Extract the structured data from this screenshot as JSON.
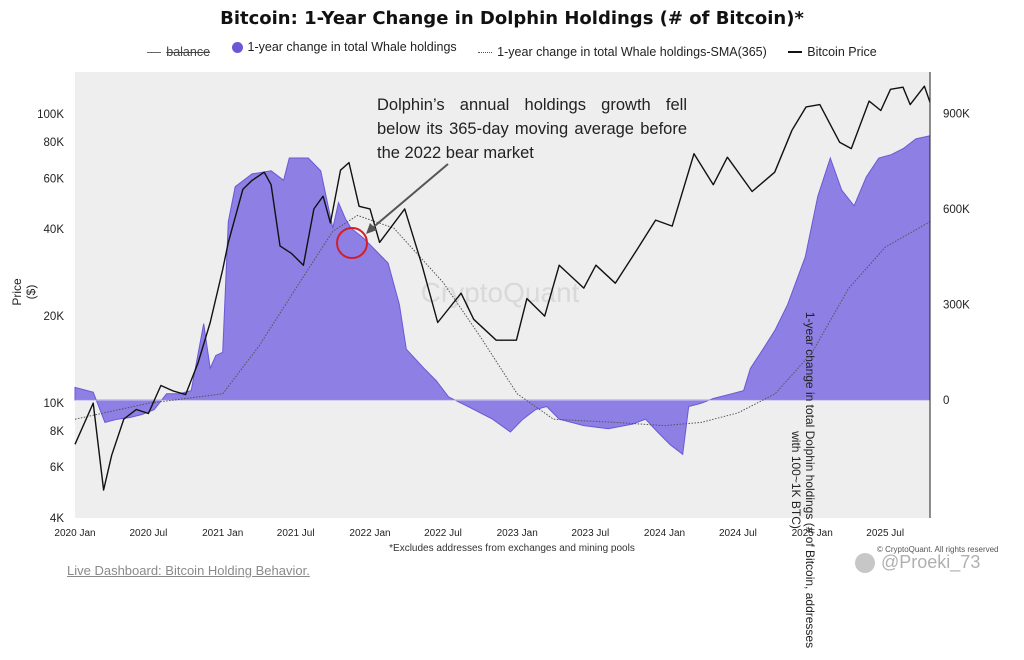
{
  "title": "Bitcoin: 1-Year Change in Dolphin Holdings (# of Bitcoin)*",
  "legend": {
    "balance": "balance",
    "whale": "1-year change in total Whale holdings",
    "sma": "1-year change in total Whale holdings-SMA(365)",
    "price": "Bitcoin Price"
  },
  "annotation": "Dolphin’s annual holdings growth fell below its 365-day moving average before the 2022 bear market",
  "watermark_center": "CryptoQuant",
  "footnote": "*Excludes addresses from exchanges and mining pools",
  "copyright": "© CryptoQuant. All rights reserved",
  "dashboard_link": "Live Dashboard: Bitcoin Holding Behavior.",
  "social_watermark": "@Proeki_73",
  "colors": {
    "fill": "#7b6be0",
    "fill_line": "#6b58d6",
    "price": "#111111",
    "sma": "#555555",
    "plot_bg": "#eeeeee",
    "highlight": "#d21f2a"
  },
  "chart_data": {
    "type": "area",
    "y_left_label": "Price ($)",
    "y_right_label": "1-year change in total Dolphin holdings (# of Bitcoin, addresses with 100~1K BTC)",
    "y_left_scale": "log",
    "y_left_range": [
      4000,
      140000
    ],
    "y_left_ticks": [
      {
        "v": 4000,
        "label": "4K"
      },
      {
        "v": 6000,
        "label": "6K"
      },
      {
        "v": 8000,
        "label": "8K"
      },
      {
        "v": 10000,
        "label": "10K"
      },
      {
        "v": 20000,
        "label": "20K"
      },
      {
        "v": 40000,
        "label": "40K"
      },
      {
        "v": 60000,
        "label": "60K"
      },
      {
        "v": 80000,
        "label": "80K"
      },
      {
        "v": 100000,
        "label": "100K"
      }
    ],
    "y_right_range": [
      -370000,
      1030000
    ],
    "y_right_ticks": [
      {
        "v": 0,
        "label": "0"
      },
      {
        "v": 300000,
        "label": "300K"
      },
      {
        "v": 600000,
        "label": "600K"
      },
      {
        "v": 900000,
        "label": "900K"
      }
    ],
    "x_range": [
      "2020-01-01",
      "2025-10-20"
    ],
    "x_ticks": [
      {
        "v": "2020-01-01",
        "label": "2020 Jan"
      },
      {
        "v": "2020-07-01",
        "label": "2020 Jul"
      },
      {
        "v": "2021-01-01",
        "label": "2021 Jan"
      },
      {
        "v": "2021-07-01",
        "label": "2021 Jul"
      },
      {
        "v": "2022-01-01",
        "label": "2022 Jan"
      },
      {
        "v": "2022-07-01",
        "label": "2022 Jul"
      },
      {
        "v": "2023-01-01",
        "label": "2023 Jan"
      },
      {
        "v": "2023-07-01",
        "label": "2023 Jul"
      },
      {
        "v": "2024-01-01",
        "label": "2024 Jan"
      },
      {
        "v": "2024-07-01",
        "label": "2024 Jul"
      },
      {
        "v": "2025-01-01",
        "label": "2025 Jan"
      },
      {
        "v": "2025-07-01",
        "label": "2025 Jul"
      }
    ],
    "series": [
      {
        "name": "1-year change in total Whale holdings",
        "axis": "right",
        "points": [
          [
            "2020-01-01",
            40000
          ],
          [
            "2020-02-15",
            25000
          ],
          [
            "2020-03-15",
            -70000
          ],
          [
            "2020-04-15",
            -60000
          ],
          [
            "2020-05-15",
            -55000
          ],
          [
            "2020-06-15",
            -45000
          ],
          [
            "2020-07-15",
            -30000
          ],
          [
            "2020-08-15",
            20000
          ],
          [
            "2020-09-15",
            20000
          ],
          [
            "2020-10-15",
            30000
          ],
          [
            "2020-11-15",
            240000
          ],
          [
            "2020-12-01",
            100000
          ],
          [
            "2020-12-15",
            140000
          ],
          [
            "2021-01-01",
            150000
          ],
          [
            "2021-01-15",
            560000
          ],
          [
            "2021-02-01",
            670000
          ],
          [
            "2021-03-15",
            710000
          ],
          [
            "2021-05-01",
            720000
          ],
          [
            "2021-06-01",
            690000
          ],
          [
            "2021-06-15",
            760000
          ],
          [
            "2021-08-01",
            760000
          ],
          [
            "2021-09-01",
            720000
          ],
          [
            "2021-10-01",
            540000
          ],
          [
            "2021-10-15",
            620000
          ],
          [
            "2021-11-01",
            570000
          ],
          [
            "2021-11-15",
            540000
          ],
          [
            "2021-12-15",
            510000
          ],
          [
            "2022-01-15",
            470000
          ],
          [
            "2022-02-15",
            430000
          ],
          [
            "2022-03-15",
            300000
          ],
          [
            "2022-04-01",
            160000
          ],
          [
            "2022-05-15",
            100000
          ],
          [
            "2022-06-15",
            60000
          ],
          [
            "2022-07-15",
            10000
          ],
          [
            "2022-09-01",
            -20000
          ],
          [
            "2022-11-01",
            -60000
          ],
          [
            "2022-12-15",
            -100000
          ],
          [
            "2023-01-15",
            -60000
          ],
          [
            "2023-02-15",
            -30000
          ],
          [
            "2023-03-15",
            -20000
          ],
          [
            "2023-04-15",
            -60000
          ],
          [
            "2023-06-15",
            -80000
          ],
          [
            "2023-08-15",
            -90000
          ],
          [
            "2023-10-15",
            -75000
          ],
          [
            "2023-11-15",
            -60000
          ],
          [
            "2023-12-15",
            -100000
          ],
          [
            "2024-01-15",
            -140000
          ],
          [
            "2024-02-15",
            -170000
          ],
          [
            "2024-03-01",
            -20000
          ],
          [
            "2024-04-01",
            -10000
          ],
          [
            "2024-05-01",
            5000
          ],
          [
            "2024-06-15",
            20000
          ],
          [
            "2024-07-15",
            30000
          ],
          [
            "2024-08-01",
            100000
          ],
          [
            "2024-09-01",
            160000
          ],
          [
            "2024-10-01",
            220000
          ],
          [
            "2024-11-01",
            300000
          ],
          [
            "2024-12-15",
            450000
          ],
          [
            "2025-01-15",
            640000
          ],
          [
            "2025-02-15",
            760000
          ],
          [
            "2025-03-15",
            660000
          ],
          [
            "2025-04-15",
            610000
          ],
          [
            "2025-05-15",
            700000
          ],
          [
            "2025-06-15",
            760000
          ],
          [
            "2025-07-15",
            770000
          ],
          [
            "2025-08-15",
            790000
          ],
          [
            "2025-09-15",
            820000
          ],
          [
            "2025-10-20",
            830000
          ]
        ]
      },
      {
        "name": "1-year change in total Whale holdings-SMA(365)",
        "axis": "right",
        "points": [
          [
            "2020-01-01",
            -60000
          ],
          [
            "2020-07-01",
            -10000
          ],
          [
            "2021-01-01",
            20000
          ],
          [
            "2021-04-01",
            170000
          ],
          [
            "2021-07-01",
            350000
          ],
          [
            "2021-10-01",
            530000
          ],
          [
            "2021-12-01",
            580000
          ],
          [
            "2022-03-01",
            540000
          ],
          [
            "2022-07-01",
            370000
          ],
          [
            "2022-10-01",
            200000
          ],
          [
            "2023-01-01",
            20000
          ],
          [
            "2023-04-01",
            -60000
          ],
          [
            "2023-09-01",
            -70000
          ],
          [
            "2024-01-01",
            -80000
          ],
          [
            "2024-04-01",
            -70000
          ],
          [
            "2024-07-01",
            -40000
          ],
          [
            "2024-10-01",
            20000
          ],
          [
            "2025-01-01",
            150000
          ],
          [
            "2025-04-01",
            350000
          ],
          [
            "2025-07-01",
            480000
          ],
          [
            "2025-10-20",
            560000
          ]
        ]
      },
      {
        "name": "Bitcoin Price",
        "axis": "left",
        "points": [
          [
            "2020-01-01",
            7200
          ],
          [
            "2020-02-15",
            10000
          ],
          [
            "2020-03-12",
            5000
          ],
          [
            "2020-04-01",
            6600
          ],
          [
            "2020-05-01",
            8800
          ],
          [
            "2020-06-01",
            9500
          ],
          [
            "2020-07-01",
            9200
          ],
          [
            "2020-08-01",
            11500
          ],
          [
            "2020-09-01",
            11000
          ],
          [
            "2020-10-01",
            10700
          ],
          [
            "2020-11-01",
            13800
          ],
          [
            "2020-12-01",
            19000
          ],
          [
            "2021-01-01",
            29000
          ],
          [
            "2021-01-15",
            36000
          ],
          [
            "2021-02-20",
            55000
          ],
          [
            "2021-03-15",
            59000
          ],
          [
            "2021-04-14",
            63000
          ],
          [
            "2021-05-01",
            57000
          ],
          [
            "2021-05-23",
            35000
          ],
          [
            "2021-06-20",
            33000
          ],
          [
            "2021-07-20",
            30000
          ],
          [
            "2021-08-15",
            47000
          ],
          [
            "2021-09-07",
            52000
          ],
          [
            "2021-09-25",
            42000
          ],
          [
            "2021-10-20",
            64000
          ],
          [
            "2021-11-10",
            68000
          ],
          [
            "2021-12-05",
            48000
          ],
          [
            "2022-01-01",
            47000
          ],
          [
            "2022-01-25",
            36000
          ],
          [
            "2022-03-28",
            47000
          ],
          [
            "2022-05-10",
            30000
          ],
          [
            "2022-06-18",
            19000
          ],
          [
            "2022-08-15",
            24000
          ],
          [
            "2022-09-15",
            19500
          ],
          [
            "2022-11-10",
            16500
          ],
          [
            "2022-12-30",
            16500
          ],
          [
            "2023-01-25",
            23000
          ],
          [
            "2023-03-10",
            20000
          ],
          [
            "2023-04-15",
            30000
          ],
          [
            "2023-06-15",
            25000
          ],
          [
            "2023-07-15",
            30000
          ],
          [
            "2023-09-01",
            26000
          ],
          [
            "2023-10-25",
            34000
          ],
          [
            "2023-12-10",
            43000
          ],
          [
            "2024-01-20",
            41000
          ],
          [
            "2024-03-14",
            73000
          ],
          [
            "2024-05-01",
            57000
          ],
          [
            "2024-06-05",
            71000
          ],
          [
            "2024-08-05",
            54000
          ],
          [
            "2024-09-30",
            63000
          ],
          [
            "2024-11-12",
            88000
          ],
          [
            "2024-12-17",
            106000
          ],
          [
            "2025-01-20",
            108000
          ],
          [
            "2025-03-10",
            80000
          ],
          [
            "2025-04-08",
            76000
          ],
          [
            "2025-05-22",
            111000
          ],
          [
            "2025-06-20",
            103000
          ],
          [
            "2025-07-14",
            122000
          ],
          [
            "2025-08-14",
            124000
          ],
          [
            "2025-09-01",
            108000
          ],
          [
            "2025-10-06",
            125000
          ],
          [
            "2025-10-20",
            110000
          ]
        ]
      }
    ]
  }
}
